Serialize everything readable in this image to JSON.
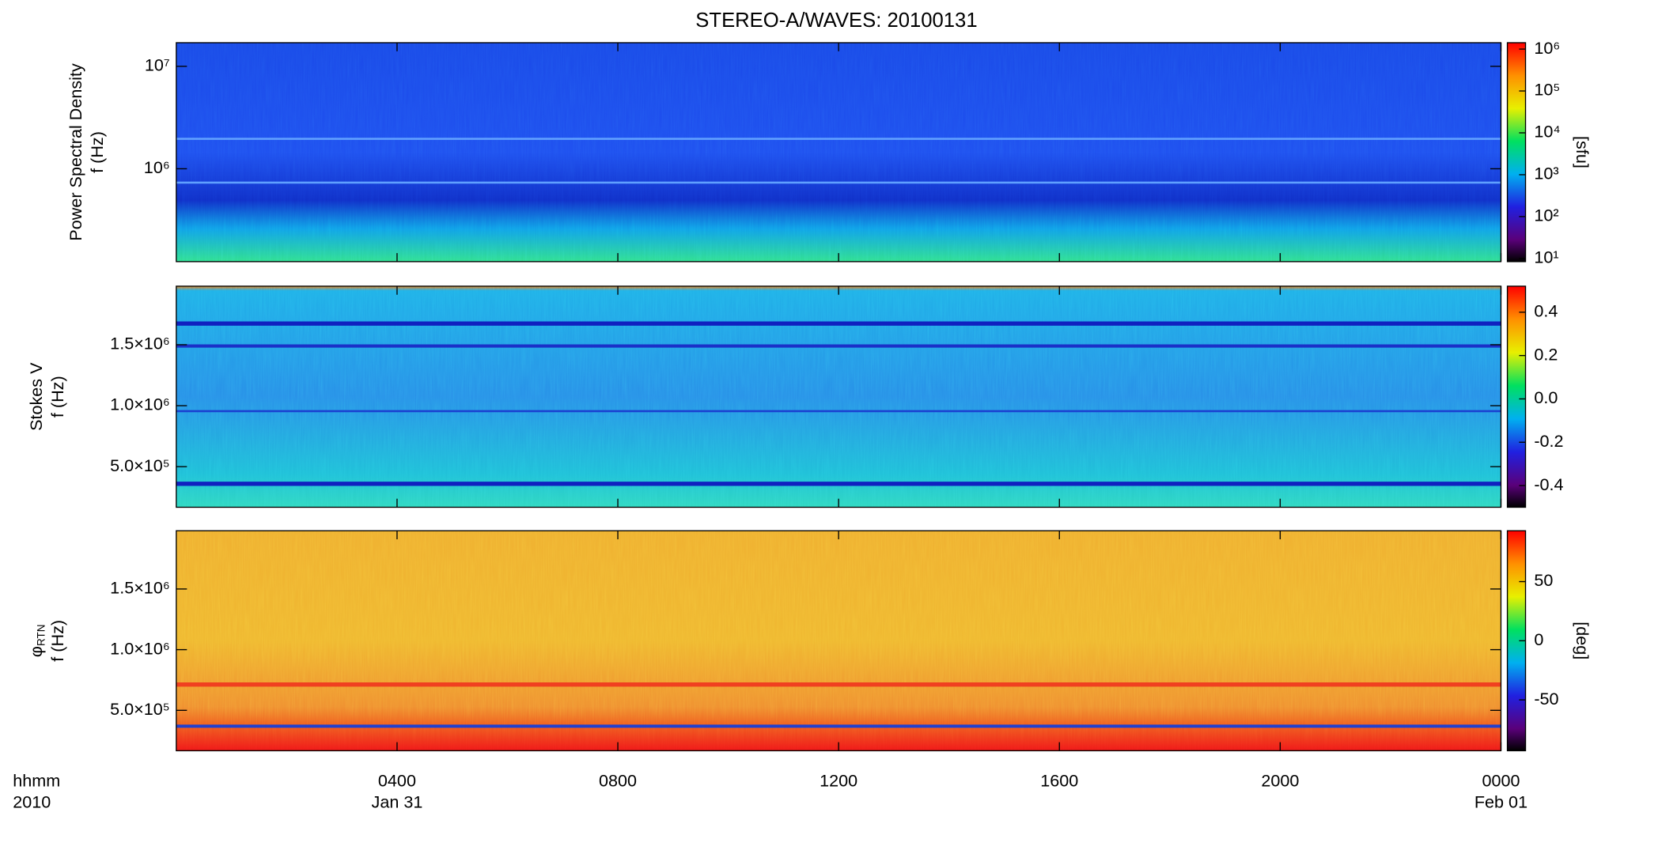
{
  "chart_data": [
    {
      "type": "spectrogram",
      "title": "STEREO-A/WAVES: 20100131",
      "ylabel": [
        "Power Spectral Density",
        "f (Hz)"
      ],
      "log_y": true,
      "ylim": [
        124000,
        17000000
      ],
      "yticks": [
        {
          "value": 1000000,
          "label": "10⁶"
        },
        {
          "value": 10000000,
          "label": "10⁷"
        }
      ],
      "colorbar": {
        "log": true,
        "lim": [
          8.4,
          1420000
        ],
        "label": "[sfu]",
        "ticks": [
          {
            "value": 10,
            "label": "10¹"
          },
          {
            "value": 100,
            "label": "10²"
          },
          {
            "value": 1000,
            "label": "10³"
          },
          {
            "value": 10000,
            "label": "10⁴"
          },
          {
            "value": 100000,
            "label": "10⁵"
          },
          {
            "value": 1000000,
            "label": "10⁶"
          }
        ]
      }
    },
    {
      "type": "spectrogram",
      "ylabel": [
        "Stokes V",
        "f (Hz)"
      ],
      "log_y": false,
      "ylim": [
        167000,
        1980000
      ],
      "yticks": [
        {
          "value": 500000,
          "label": "5.0×10⁵"
        },
        {
          "value": 1000000,
          "label": "1.0×10⁶"
        },
        {
          "value": 1500000,
          "label": "1.5×10⁶"
        }
      ],
      "colorbar": {
        "log": false,
        "lim": [
          -0.5,
          0.52
        ],
        "ticks": [
          -0.4,
          -0.2,
          {
            "value": 0,
            "label": "0.0"
          },
          0.2,
          0.4
        ]
      }
    },
    {
      "type": "spectrogram",
      "ylabel": [
        "φ",
        "f (Hz)"
      ],
      "ylabel_sub": "RTN",
      "log_y": false,
      "ylim": [
        167000,
        1980000
      ],
      "yticks": [
        {
          "value": 500000,
          "label": "5.0×10⁵"
        },
        {
          "value": 1000000,
          "label": "1.0×10⁶"
        },
        {
          "value": 1500000,
          "label": "1.5×10⁶"
        }
      ],
      "colorbar": {
        "log": false,
        "lim": [
          -93,
          93
        ],
        "label": "[deg]",
        "ticks": [
          -50,
          0,
          50
        ]
      },
      "xlim": [
        0,
        24
      ],
      "xticks": [
        {
          "value": 4,
          "label": "0400"
        },
        {
          "value": 8,
          "label": "0800"
        },
        {
          "value": 12,
          "label": "1200"
        },
        {
          "value": 16,
          "label": "1600"
        },
        {
          "value": 20,
          "label": "2000"
        },
        {
          "value": 24,
          "label": "0000"
        }
      ],
      "x_date_labels": [
        {
          "value": 4,
          "label": "Jan 31"
        },
        {
          "value": 24,
          "label": "Feb 01"
        }
      ],
      "xlabel": [
        "hhmm",
        "2010"
      ]
    }
  ]
}
